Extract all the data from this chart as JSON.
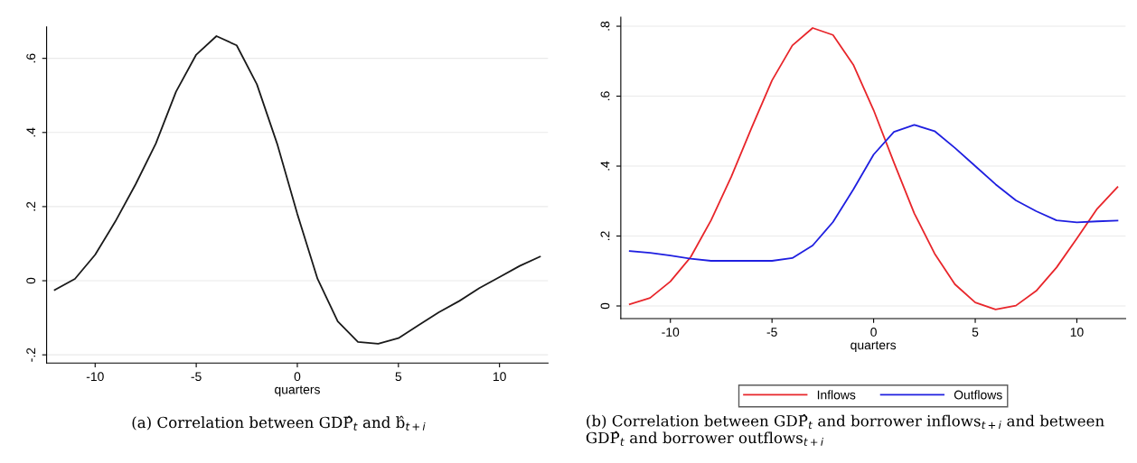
{
  "chart_data": [
    {
      "type": "line",
      "xlabel": "quarters",
      "x": [
        -12,
        -11,
        -10,
        -9,
        -8,
        -7,
        -6,
        -5,
        -4,
        -3,
        -2,
        -1,
        0,
        1,
        2,
        3,
        4,
        5,
        6,
        7,
        8,
        9,
        10,
        11,
        12
      ],
      "series": [
        {
          "color": "#1a1a1a",
          "values": [
            -0.025,
            0.005,
            0.07,
            0.16,
            0.26,
            0.37,
            0.51,
            0.61,
            0.66,
            0.635,
            0.53,
            0.37,
            0.18,
            0.005,
            -0.11,
            -0.165,
            -0.17,
            -0.155,
            -0.12,
            -0.085,
            -0.055,
            -0.02,
            0.01,
            0.04,
            0.065
          ]
        }
      ],
      "xlim": [
        -12.4,
        12.4
      ],
      "xticks": [
        -10,
        -5,
        0,
        5,
        10
      ],
      "ylim": [
        -0.222,
        0.685
      ],
      "yticks": [
        {
          "value": -0.2,
          "label": "-.2"
        },
        {
          "value": 0,
          "label": "0"
        },
        {
          "value": 0.2,
          "label": ".2"
        },
        {
          "value": 0.4,
          "label": ".4"
        },
        {
          "value": 0.6,
          "label": ".6"
        }
      ],
      "grid": "y",
      "legend": false,
      "annotations": [
        "(a) Correlation between GDP̂$_{t}$ and b̂$_{t+i}$"
      ]
    },
    {
      "type": "line",
      "xlabel": "quarters",
      "x": [
        -12,
        -11,
        -10,
        -9,
        -8,
        -7,
        -6,
        -5,
        -4,
        -3,
        -2,
        -1,
        0,
        1,
        2,
        3,
        4,
        5,
        6,
        7,
        8,
        9,
        10,
        11,
        12
      ],
      "series": [
        {
          "name": "Inflows",
          "color": "#e8262b",
          "values": [
            0.005,
            0.023,
            0.07,
            0.14,
            0.245,
            0.37,
            0.51,
            0.645,
            0.745,
            0.795,
            0.775,
            0.69,
            0.56,
            0.41,
            0.265,
            0.15,
            0.062,
            0.01,
            -0.01,
            0.001,
            0.043,
            0.11,
            0.193,
            0.278,
            0.34
          ]
        },
        {
          "name": "Outflows",
          "color": "#1f1fe0",
          "values": [
            0.157,
            0.152,
            0.144,
            0.135,
            0.129,
            0.129,
            0.129,
            0.129,
            0.137,
            0.173,
            0.24,
            0.333,
            0.433,
            0.498,
            0.518,
            0.5,
            0.452,
            0.4,
            0.348,
            0.302,
            0.271,
            0.245,
            0.239,
            0.242,
            0.244
          ]
        }
      ],
      "xlim": [
        -12.44,
        12.4
      ],
      "xticks": [
        -10,
        -5,
        0,
        5,
        10
      ],
      "ylim": [
        -0.036,
        0.826
      ],
      "yticks": [
        {
          "value": 0,
          "label": "0"
        },
        {
          "value": 0.2,
          "label": ".2"
        },
        {
          "value": 0.4,
          "label": ".4"
        },
        {
          "value": 0.6,
          "label": ".6"
        },
        {
          "value": 0.8,
          "label": ".8"
        }
      ],
      "grid": "y",
      "legend": "bottom",
      "annotations": [
        "(b) Correlation between GDP̂$_{t}$ and borrower inflows$_{t+i}$ and between GDP̂$_{t}$ and borrower outflows$_{t+i}$"
      ]
    }
  ]
}
